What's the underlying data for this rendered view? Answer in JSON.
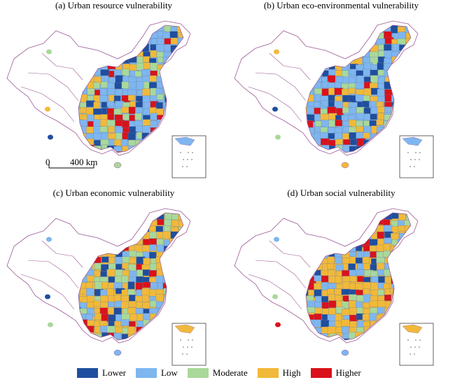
{
  "panels": [
    {
      "title": "(a) Urban resource vulnerability",
      "dominant": "low",
      "mix": [
        "low",
        "moderate",
        "high",
        "lower",
        "higher"
      ]
    },
    {
      "title": "(b) Urban eco-environmental vulnerability",
      "dominant": "low",
      "mix": [
        "low",
        "high",
        "lower",
        "moderate",
        "higher"
      ]
    },
    {
      "title": "(c) Urban economic vulnerability",
      "dominant": "high",
      "mix": [
        "high",
        "low",
        "lower",
        "moderate",
        "higher"
      ]
    },
    {
      "title": "(d) Urban social vulnerability",
      "dominant": "high",
      "mix": [
        "high",
        "low",
        "moderate",
        "higher",
        "lower"
      ]
    }
  ],
  "scale_bar": {
    "start": "0",
    "end": "400 km"
  },
  "legend": [
    {
      "key": "lower",
      "label": "Lower",
      "color": "#1f4e9e"
    },
    {
      "key": "low",
      "label": "Low",
      "color": "#7eb6f0"
    },
    {
      "key": "moderate",
      "label": "Moderate",
      "color": "#a9d89a"
    },
    {
      "key": "high",
      "label": "High",
      "color": "#f1b93a"
    },
    {
      "key": "higher",
      "label": "Higher",
      "color": "#d9121b"
    }
  ],
  "colors": {
    "boundary": "#9b5b96",
    "background": "#ffffff"
  }
}
